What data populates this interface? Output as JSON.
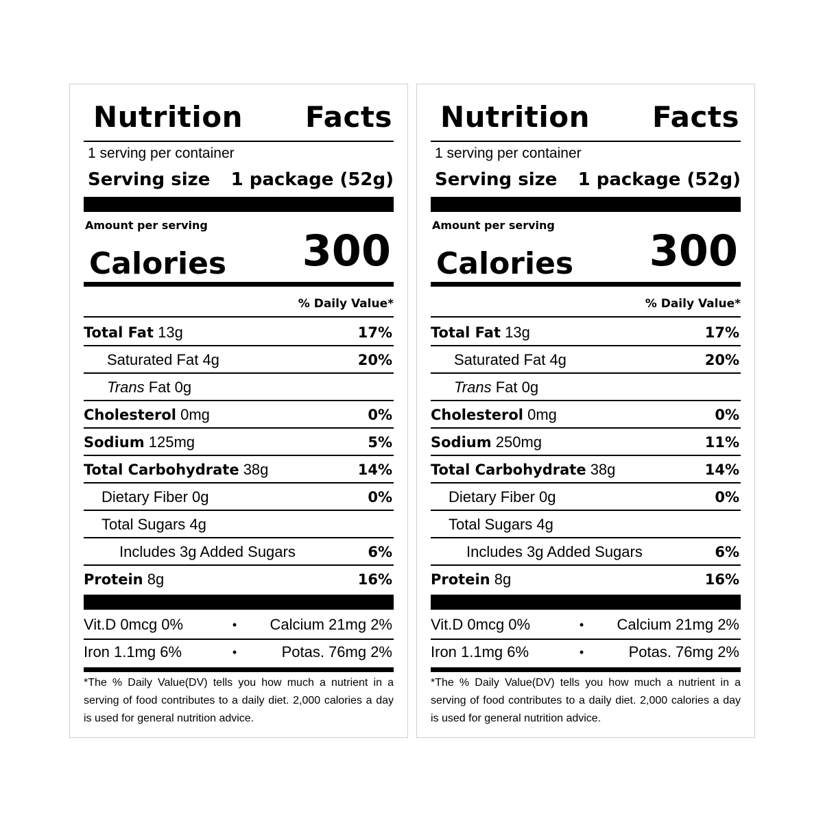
{
  "labels": [
    {
      "title_left": "Nutrition",
      "title_right": "Facts",
      "servings_per_container": "1 serving per container",
      "serving_size_label": "Serving size",
      "serving_size_value": "1 package (52g)",
      "amount_per_serving": "Amount per serving",
      "calories_label": "Calories",
      "calories_value": "300",
      "dv_header": "% Daily Value*",
      "rows": [
        {
          "name": "Total Fat",
          "amount": "13g",
          "pct": "17%"
        },
        {
          "name": "Saturated Fat",
          "amount": "4g",
          "pct": "20%"
        },
        {
          "name": "Trans",
          "amount": "Fat 0g",
          "pct": ""
        },
        {
          "name": "Cholesterol",
          "amount": "0mg",
          "pct": "0%"
        },
        {
          "name": "Sodium",
          "amount": "125mg",
          "pct": "5%"
        },
        {
          "name": "Total Carbohydrate",
          "amount": "38g",
          "pct": "14%"
        },
        {
          "name": "Dietary Fiber",
          "amount": "0g",
          "pct": "0%"
        },
        {
          "name": "Total Sugars",
          "amount": "4g",
          "pct": ""
        },
        {
          "name": "Includes 3g Added Sugars",
          "amount": "",
          "pct": "6%"
        },
        {
          "name": "Protein",
          "amount": "8g",
          "pct": "16%"
        }
      ],
      "vitamins": [
        {
          "left": "Vit.D 0mcg 0%",
          "right": "Calcium 21mg 2%"
        },
        {
          "left": "Iron 1.1mg 6%",
          "right": "Potas. 76mg 2%"
        }
      ],
      "bullet": "•",
      "footnote": "*The % Daily Value(DV) tells you how much a nutrient in a serving of food contributes to a daily diet. 2,000 calories a day is used for general nutrition advice."
    },
    {
      "title_left": "Nutrition",
      "title_right": "Facts",
      "servings_per_container": "1 serving per container",
      "serving_size_label": "Serving size",
      "serving_size_value": "1 package (52g)",
      "amount_per_serving": "Amount per serving",
      "calories_label": "Calories",
      "calories_value": "300",
      "dv_header": "% Daily Value*",
      "rows": [
        {
          "name": "Total Fat",
          "amount": "13g",
          "pct": "17%"
        },
        {
          "name": "Saturated Fat",
          "amount": "4g",
          "pct": "20%"
        },
        {
          "name": "Trans",
          "amount": "Fat 0g",
          "pct": ""
        },
        {
          "name": "Cholesterol",
          "amount": "0mg",
          "pct": "0%"
        },
        {
          "name": "Sodium",
          "amount": "250mg",
          "pct": "11%"
        },
        {
          "name": "Total Carbohydrate",
          "amount": "38g",
          "pct": "14%"
        },
        {
          "name": "Dietary Fiber",
          "amount": "0g",
          "pct": "0%"
        },
        {
          "name": "Total Sugars",
          "amount": "4g",
          "pct": ""
        },
        {
          "name": "Includes 3g Added Sugars",
          "amount": "",
          "pct": "6%"
        },
        {
          "name": "Protein",
          "amount": "8g",
          "pct": "16%"
        }
      ],
      "vitamins": [
        {
          "left": "Vit.D 0mcg 0%",
          "right": "Calcium 21mg 2%"
        },
        {
          "left": "Iron 1.1mg 6%",
          "right": "Potas. 76mg 2%"
        }
      ],
      "bullet": "•",
      "footnote": "*The % Daily Value(DV) tells you how much a nutrient in a serving of food contributes to a daily diet. 2,000 calories a day is used for general nutrition advice."
    }
  ]
}
